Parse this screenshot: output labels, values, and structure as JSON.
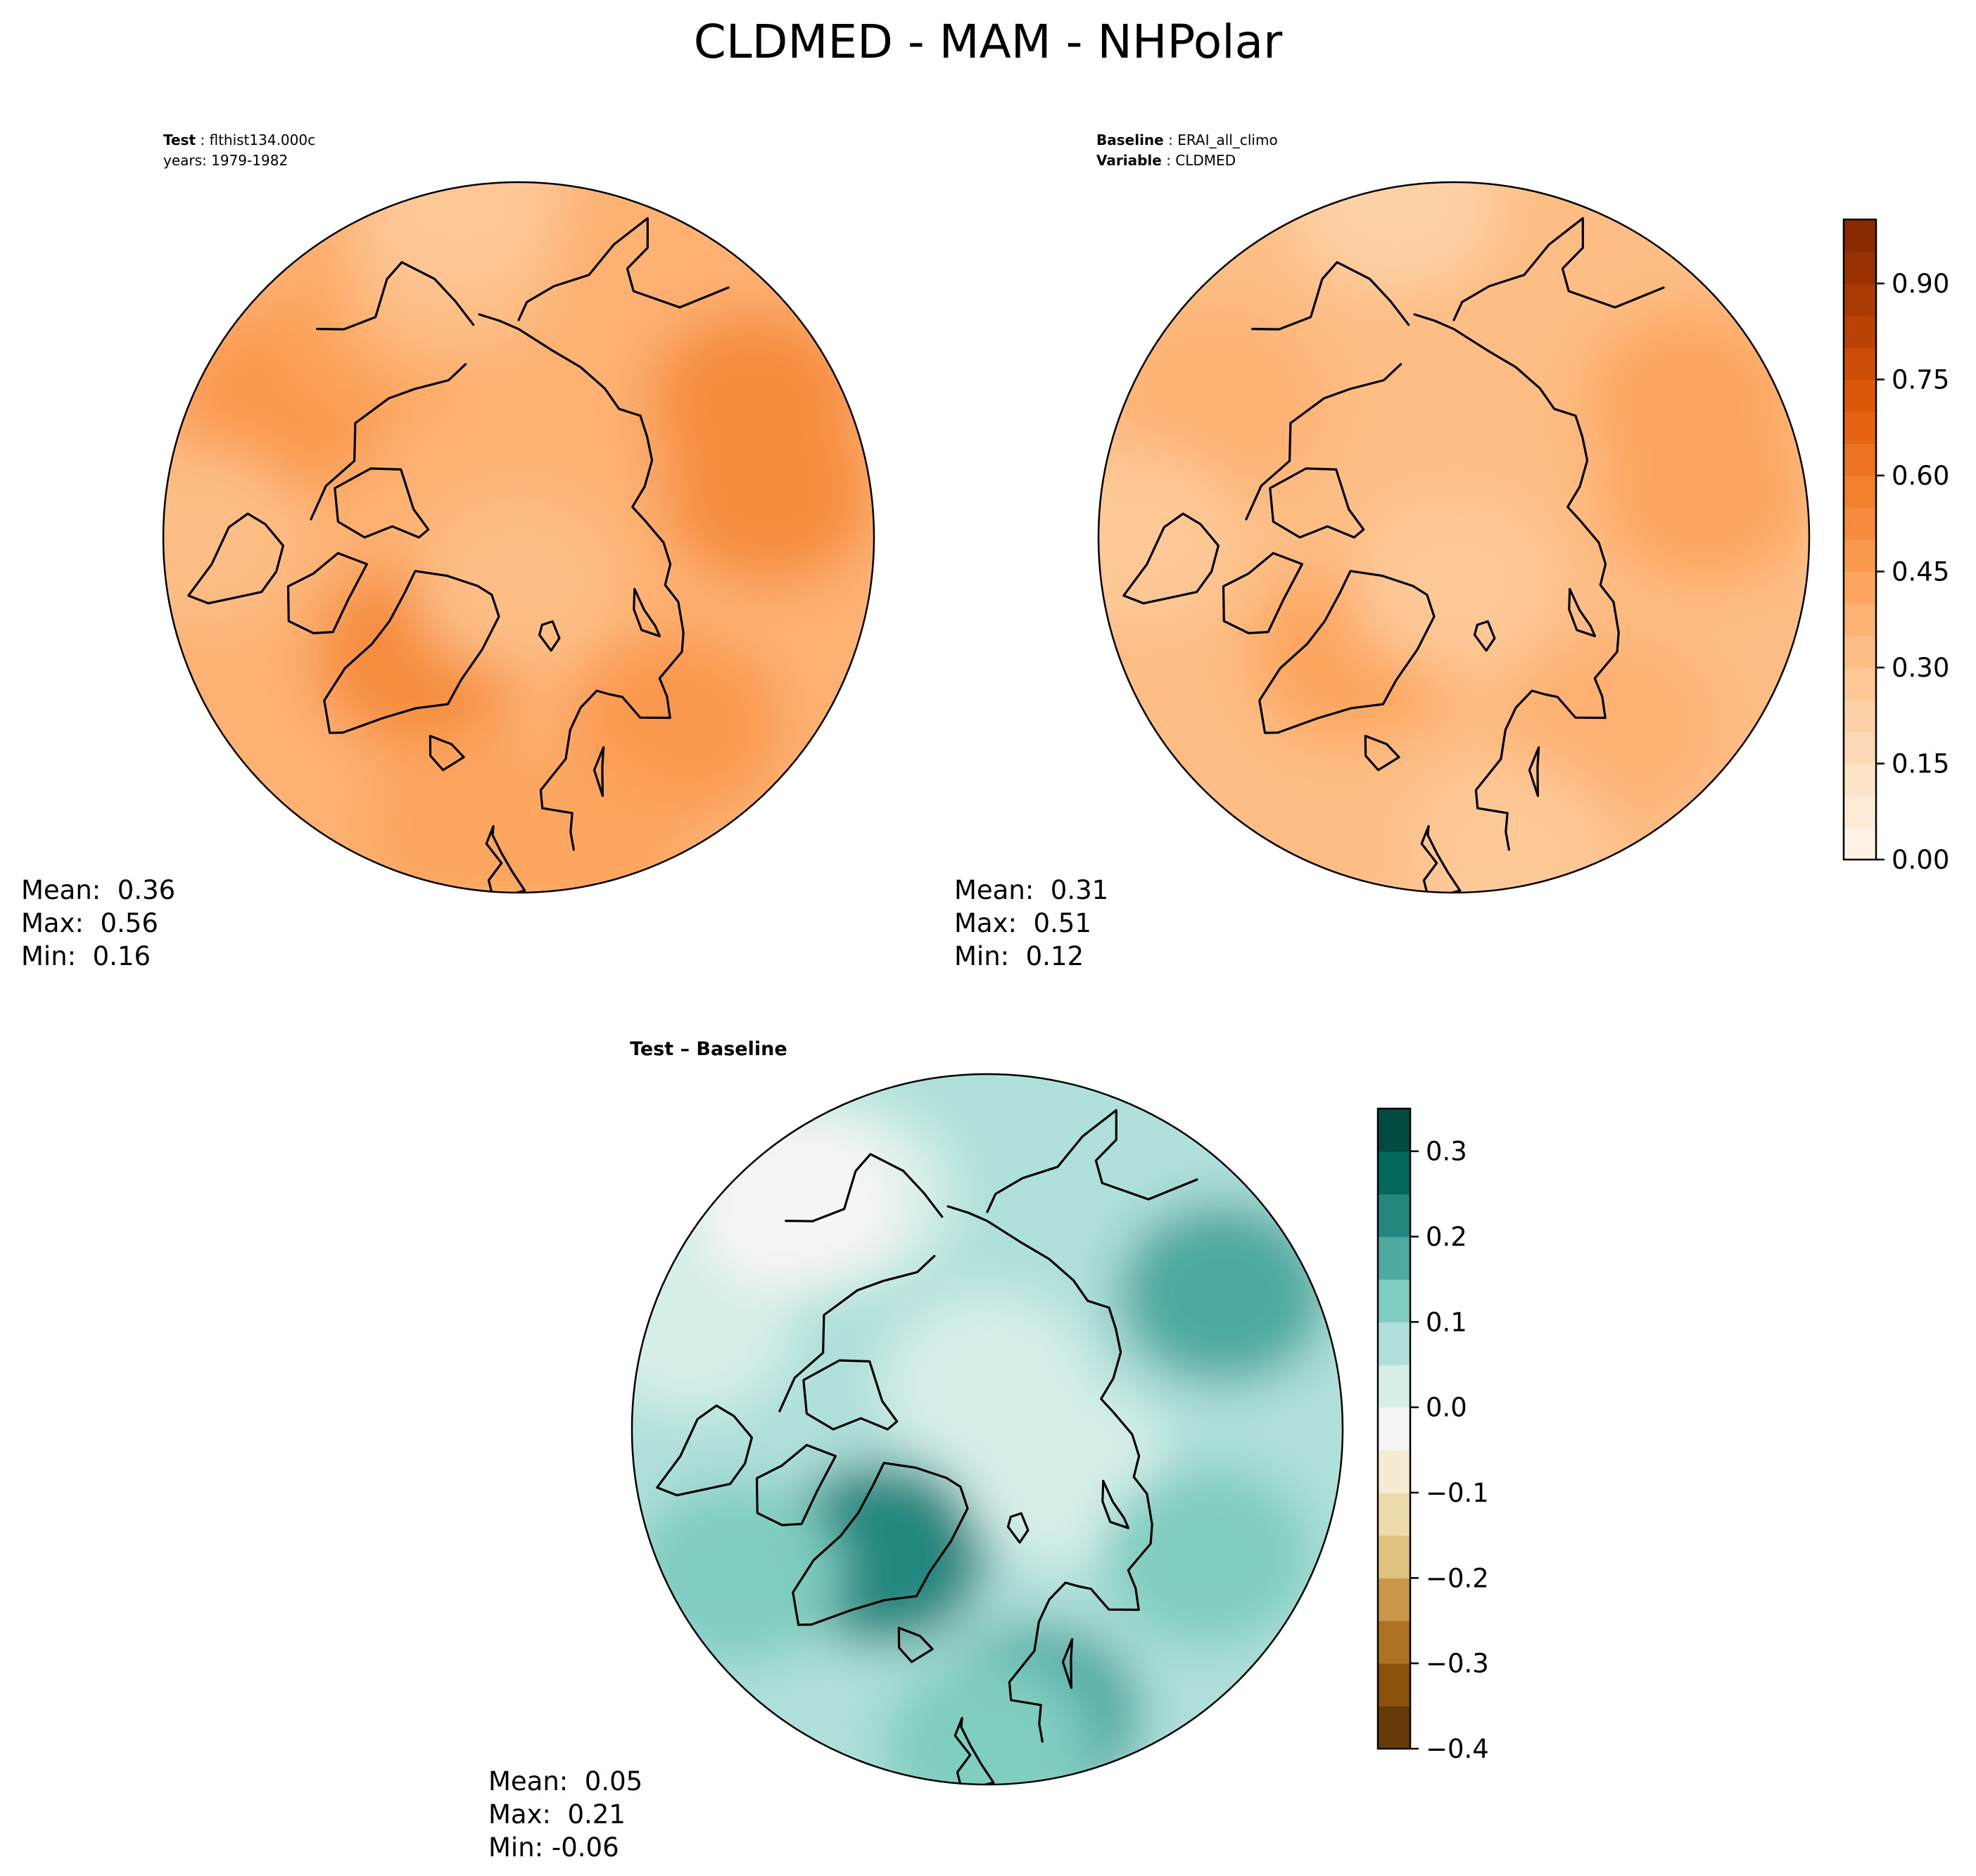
{
  "figure": {
    "title": "CLDMED - MAM - NHPolar"
  },
  "colors": {
    "seq_stops": [
      "#fff5eb",
      "#fde0c2",
      "#fdc692",
      "#fda55e",
      "#f3812e",
      "#df5b0c",
      "#b13b03",
      "#7f2704"
    ],
    "div_stops": [
      "#543005",
      "#8c510a",
      "#bf812d",
      "#dfc27d",
      "#f6e8c3",
      "#f5f5f5",
      "#c7eae5",
      "#80cdc1",
      "#35978f",
      "#01665e",
      "#003c30"
    ],
    "coast": "#000000"
  },
  "chart_data": [
    {
      "type": "heatmap",
      "name": "test",
      "header_lines": [
        {
          "label": "Test",
          "value": "flthist134.000c"
        },
        {
          "label": "",
          "value": "years: 1979-1982"
        }
      ],
      "projection": "north-polar-stereographic",
      "region": "NHPolar",
      "field_regions": [
        {
          "lat": 62,
          "lon": 100,
          "value": 0.5
        },
        {
          "lat": 60,
          "lon": 120,
          "value": 0.52
        },
        {
          "lat": 73,
          "lon": -40,
          "value": 0.5
        },
        {
          "lat": 63,
          "lon": 40,
          "value": 0.45
        },
        {
          "lat": 60,
          "lon": -120,
          "value": 0.46
        },
        {
          "lat": 62,
          "lon": -150,
          "value": 0.42
        },
        {
          "lat": 85,
          "lon": 0,
          "value": 0.3
        },
        {
          "lat": 58,
          "lon": -10,
          "value": 0.4
        },
        {
          "lat": 55,
          "lon": 10,
          "value": 0.44
        },
        {
          "lat": 55,
          "lon": -90,
          "value": 0.3
        },
        {
          "lat": 60,
          "lon": -165,
          "value": 0.33
        },
        {
          "lat": 52,
          "lon": -170,
          "value": 0.28
        }
      ],
      "stats": {
        "mean": "Mean:  0.36",
        "max": "Max:  0.56",
        "min": "Min:  0.16"
      },
      "mean": 0.36,
      "max": 0.56,
      "min": 0.16
    },
    {
      "type": "heatmap",
      "name": "baseline",
      "header_lines": [
        {
          "label": "Baseline",
          "value": "ERAI_all_climo"
        },
        {
          "label": "Variable",
          "value": "CLDMED"
        }
      ],
      "projection": "north-polar-stereographic",
      "region": "NHPolar",
      "field_regions": [
        {
          "lat": 62,
          "lon": 100,
          "value": 0.42
        },
        {
          "lat": 60,
          "lon": 120,
          "value": 0.4
        },
        {
          "lat": 73,
          "lon": -40,
          "value": 0.43
        },
        {
          "lat": 63,
          "lon": 40,
          "value": 0.36
        },
        {
          "lat": 60,
          "lon": -120,
          "value": 0.35
        },
        {
          "lat": 85,
          "lon": 0,
          "value": 0.27
        },
        {
          "lat": 58,
          "lon": -10,
          "value": 0.3
        },
        {
          "lat": 55,
          "lon": 10,
          "value": 0.28
        },
        {
          "lat": 55,
          "lon": -90,
          "value": 0.25
        },
        {
          "lat": 52,
          "lon": -170,
          "value": 0.2
        }
      ],
      "stats": {
        "mean": "Mean:  0.31",
        "max": "Max:  0.51",
        "min": "Min:  0.12"
      },
      "mean": 0.31,
      "max": 0.51,
      "min": 0.12
    },
    {
      "type": "heatmap",
      "name": "difference",
      "header_lines": [
        {
          "label": "Test – Baseline",
          "value": ""
        }
      ],
      "projection": "north-polar-stereographic",
      "region": "NHPolar",
      "field_regions": [
        {
          "lat": 60,
          "lon": 120,
          "value": 0.15
        },
        {
          "lat": 58,
          "lon": 10,
          "value": 0.16
        },
        {
          "lat": 55,
          "lon": 0,
          "value": 0.14
        },
        {
          "lat": 72,
          "lon": -40,
          "value": 0.2
        },
        {
          "lat": 80,
          "lon": 60,
          "value": 0.0
        },
        {
          "lat": 85,
          "lon": 180,
          "value": 0.02
        },
        {
          "lat": 58,
          "lon": -60,
          "value": 0.1
        },
        {
          "lat": 55,
          "lon": -110,
          "value": 0.02
        },
        {
          "lat": 60,
          "lon": -150,
          "value": 0.04
        },
        {
          "lat": 62,
          "lon": 60,
          "value": 0.1
        },
        {
          "lat": 57,
          "lon": -140,
          "value": -0.03
        }
      ],
      "stats": {
        "mean": "Mean:  0.05",
        "max": "Max:  0.21",
        "min": "Min: -0.06"
      },
      "mean": 0.05,
      "max": 0.21,
      "min": -0.06
    }
  ],
  "colorbars": [
    {
      "name": "shared-sequential",
      "range": [
        0.0,
        1.0
      ],
      "levels": [
        0.0,
        0.05,
        0.1,
        0.15,
        0.2,
        0.25,
        0.3,
        0.35,
        0.4,
        0.45,
        0.5,
        0.55,
        0.6,
        0.65,
        0.7,
        0.75,
        0.8,
        0.85,
        0.9,
        0.95,
        1.0
      ],
      "ticks": [
        0.0,
        0.15,
        0.3,
        0.45,
        0.6,
        0.75,
        0.9
      ],
      "tick_labels": [
        "0.00",
        "0.15",
        "0.30",
        "0.45",
        "0.60",
        "0.75",
        "0.90"
      ]
    },
    {
      "name": "difference-diverging",
      "range": [
        -0.4,
        0.35
      ],
      "levels": [
        -0.4,
        -0.35,
        -0.3,
        -0.25,
        -0.2,
        -0.15,
        -0.1,
        -0.05,
        0.0,
        0.05,
        0.1,
        0.15,
        0.2,
        0.25,
        0.3,
        0.35
      ],
      "ticks": [
        -0.4,
        -0.3,
        -0.2,
        -0.1,
        0.0,
        0.1,
        0.2,
        0.3
      ],
      "tick_labels": [
        "−0.4",
        "−0.3",
        "−0.2",
        "−0.1",
        "0.0",
        "0.1",
        "0.2",
        "0.3"
      ]
    }
  ]
}
